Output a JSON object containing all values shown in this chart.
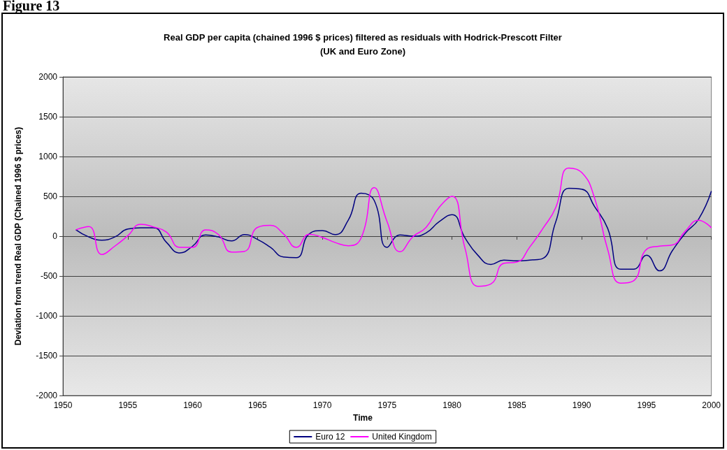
{
  "chart_data": {
    "type": "line",
    "title": "Real GDP per capita (chained 1996 $ prices) filtered as residuals with Hodrick-Prescott Filter\n(UK and Euro Zone)",
    "xlabel": "Time",
    "ylabel": "Deviation from trend Real GDP (Chained 1996 $ prices)",
    "annotations": [
      "Figure 13"
    ],
    "x": [
      1951,
      1952,
      1953,
      1954,
      1955,
      1956,
      1957,
      1958,
      1959,
      1960,
      1961,
      1962,
      1963,
      1964,
      1965,
      1966,
      1967,
      1968,
      1969,
      1970,
      1971,
      1972,
      1973,
      1974,
      1975,
      1976,
      1977,
      1978,
      1979,
      1980,
      1981,
      1982,
      1983,
      1984,
      1985,
      1986,
      1987,
      1988,
      1989,
      1990,
      1991,
      1992,
      1993,
      1994,
      1995,
      1996,
      1997,
      1998,
      1999,
      2000
    ],
    "series": [
      {
        "name": "Euro 12",
        "color": "#000080",
        "values": [
          80,
          -10,
          -50,
          -10,
          90,
          105,
          105,
          -80,
          -210,
          -125,
          15,
          -10,
          -60,
          20,
          -40,
          -140,
          -260,
          -270,
          30,
          70,
          20,
          200,
          540,
          450,
          -140,
          15,
          0,
          40,
          180,
          270,
          -20,
          -240,
          -355,
          -300,
          -310,
          -300,
          -280,
          180,
          600,
          590,
          370,
          100,
          -415,
          -415,
          -240,
          -435,
          -180,
          40,
          210,
          565
        ]
      },
      {
        "name": "United Kingdom",
        "color": "#ff00ff",
        "values": [
          80,
          120,
          -230,
          -125,
          5,
          150,
          115,
          50,
          -140,
          -140,
          80,
          20,
          -200,
          -190,
          110,
          135,
          30,
          -140,
          25,
          -15,
          -80,
          -120,
          -20,
          610,
          180,
          -195,
          -5,
          110,
          360,
          500,
          -150,
          -630,
          -600,
          -340,
          -325,
          -135,
          95,
          360,
          855,
          800,
          475,
          -165,
          -590,
          -560,
          -165,
          -125,
          -110,
          65,
          200,
          105
        ]
      }
    ],
    "xlim": [
      1950,
      2000
    ],
    "xticks": [
      1950,
      1955,
      1960,
      1965,
      1970,
      1975,
      1980,
      1985,
      1990,
      1995,
      2000
    ],
    "ylim": [
      -2000,
      2000
    ],
    "yticks": [
      -2000,
      -1500,
      -1000,
      -500,
      0,
      500,
      1000,
      1500,
      2000
    ],
    "grid": "y",
    "legend": "bottom",
    "marker": "none",
    "line_style": "solid"
  }
}
